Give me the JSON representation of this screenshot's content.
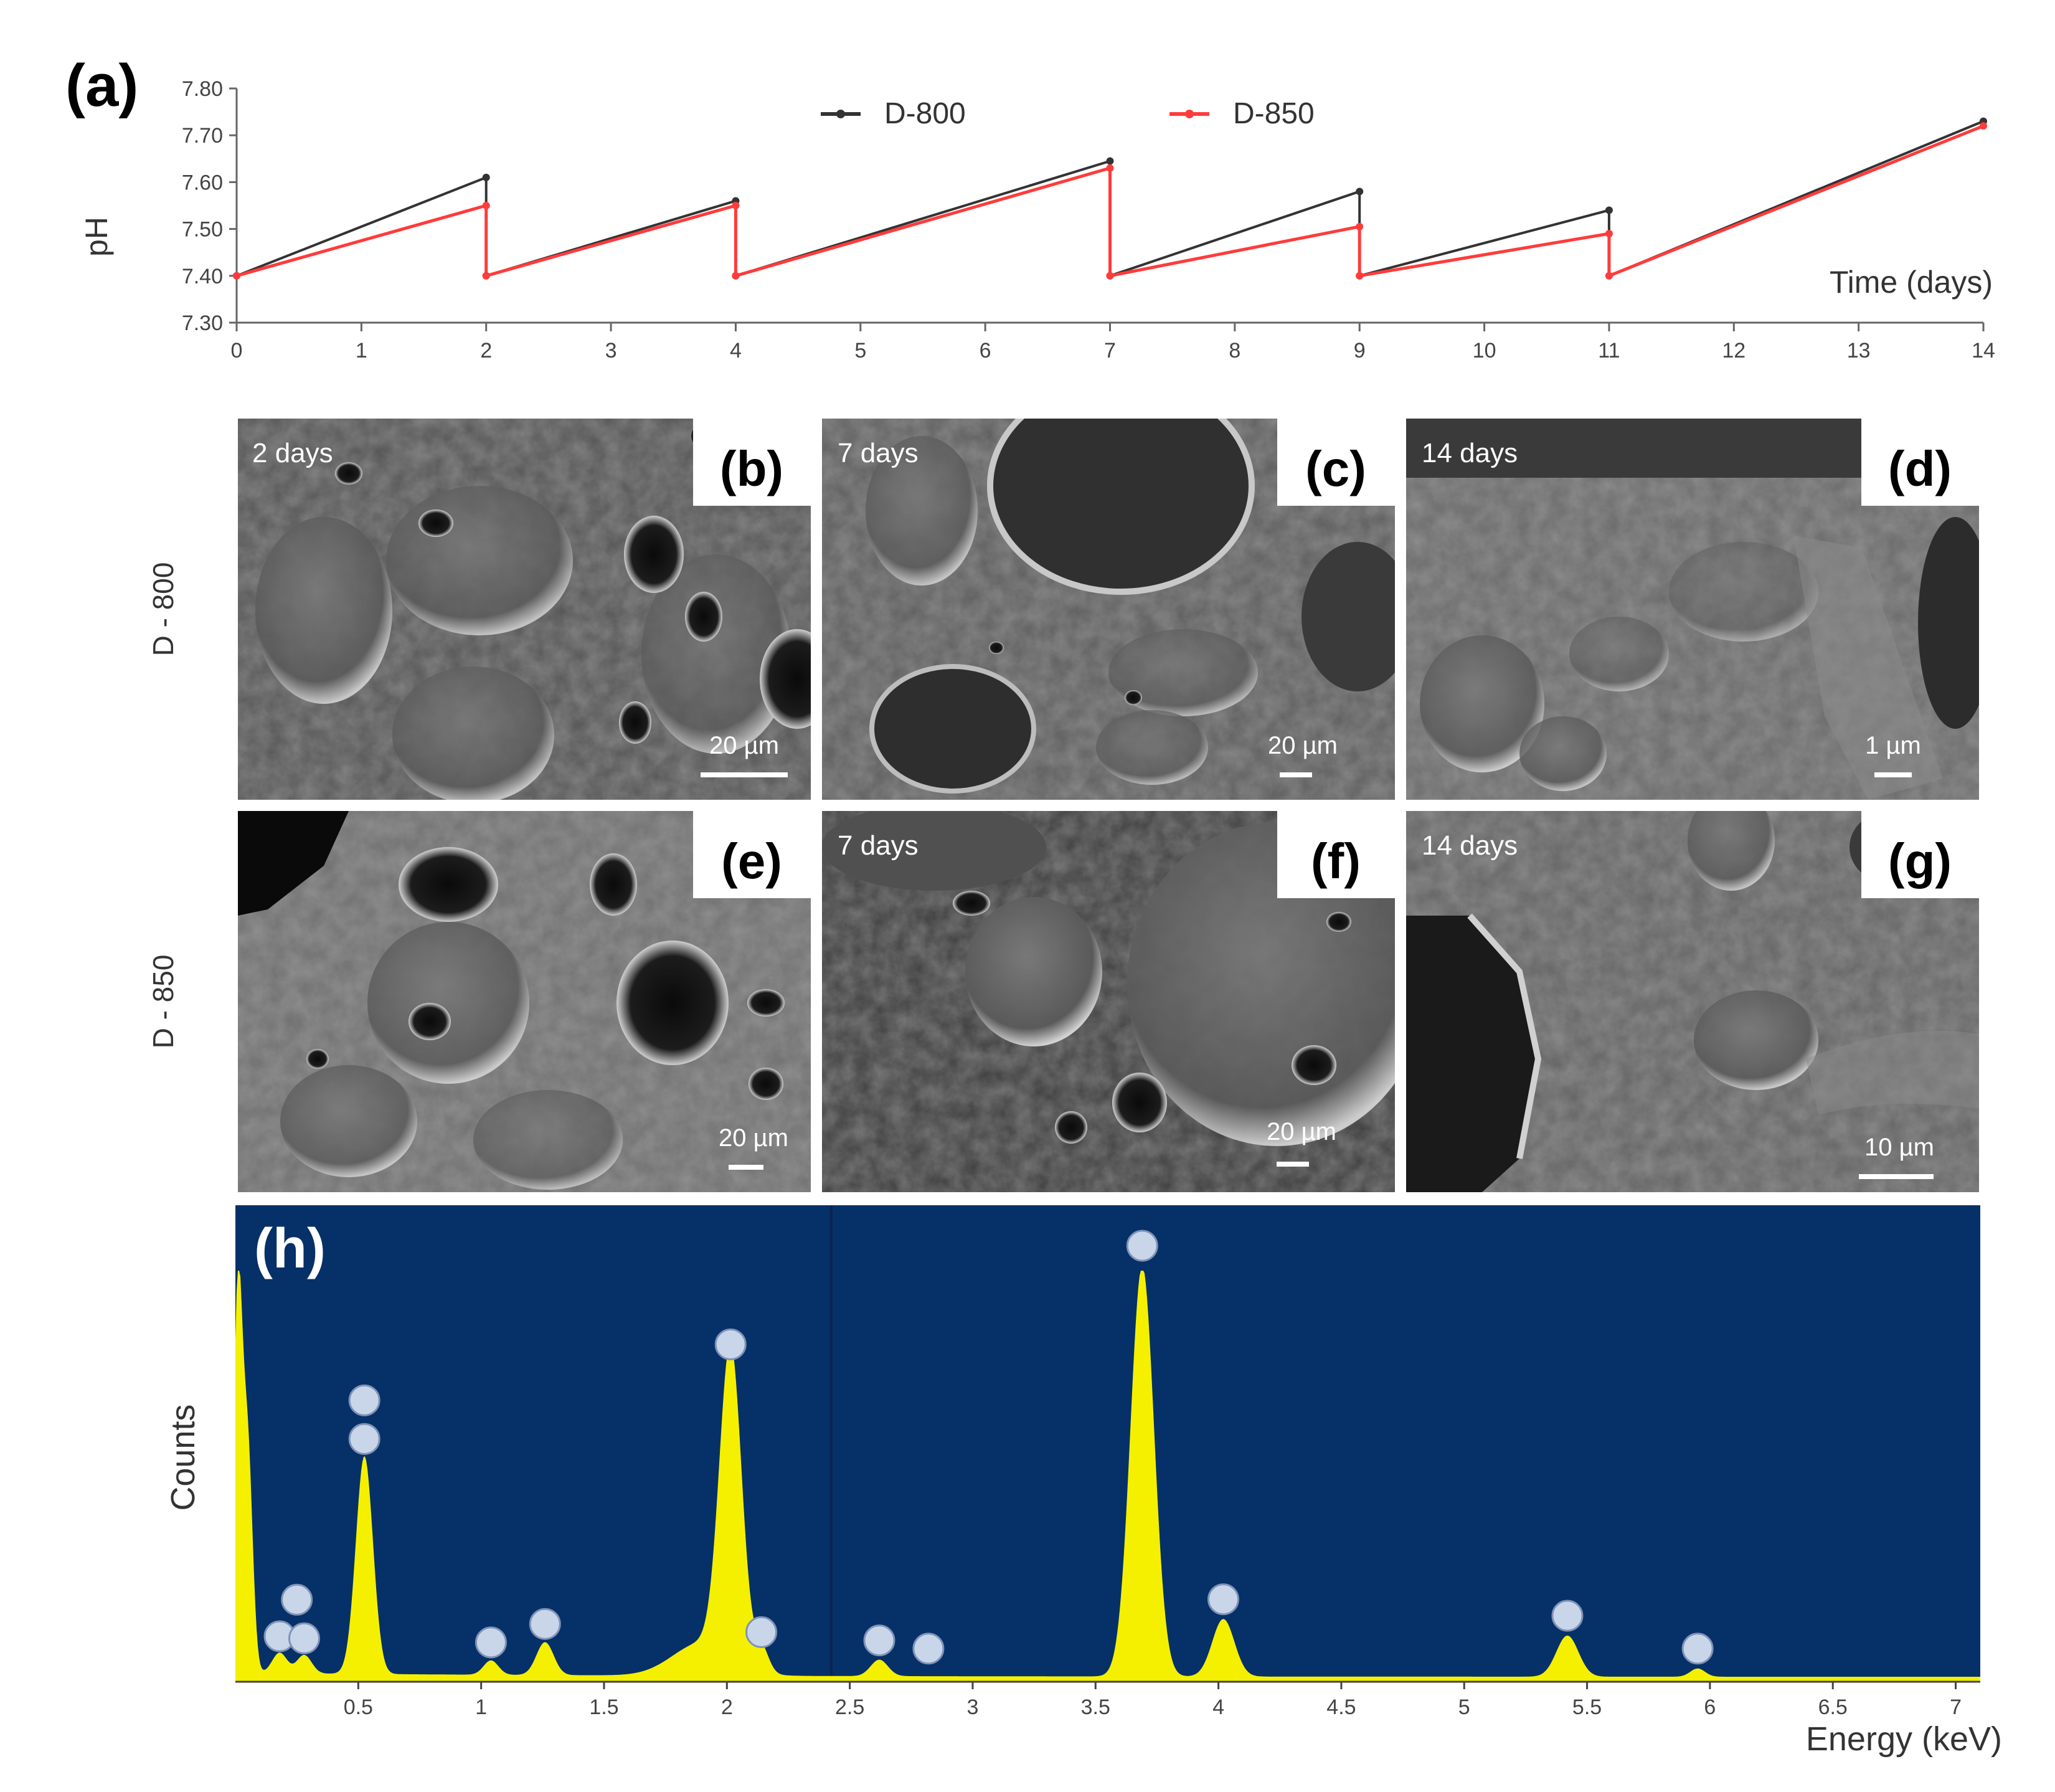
{
  "figure": {
    "panel_a": {
      "label": "(a)",
      "legend": [
        {
          "name": "D-800",
          "color": "#333333"
        },
        {
          "name": "D-850",
          "color": "#ff3b3b"
        }
      ],
      "ylabel": "pH",
      "xlabel": "Time (days)"
    },
    "sem": {
      "row_labels": [
        "D - 800",
        "D - 850"
      ],
      "panels": [
        {
          "label": "(b)",
          "day": "2 days",
          "scale": "20 µm"
        },
        {
          "label": "(c)",
          "day": "7 days",
          "scale": "20 µm"
        },
        {
          "label": "(d)",
          "day": "14 days",
          "scale": "1 µm"
        },
        {
          "label": "(e)",
          "day": "",
          "scale": "20 µm"
        },
        {
          "label": "(f)",
          "day": "7 days",
          "scale": "20 µm"
        },
        {
          "label": "(g)",
          "day": "14 days",
          "scale": "10 µm"
        }
      ]
    },
    "panel_h": {
      "label": "(h)",
      "ylabel": "Counts",
      "xlabel": "Energy (keV)",
      "background": "#063068",
      "spectrum_color": "#f4f000"
    }
  },
  "chart_data": [
    {
      "type": "line",
      "title": "",
      "xlabel": "Time (days)",
      "ylabel": "pH",
      "xlim": [
        0,
        14
      ],
      "ylim": [
        7.3,
        7.8
      ],
      "x_ticks": [
        "0",
        "1",
        "2",
        "3",
        "4",
        "5",
        "6",
        "7",
        "8",
        "9",
        "10",
        "11",
        "12",
        "13",
        "14"
      ],
      "y_ticks": [
        "7.30",
        "7.40",
        "7.50",
        "7.60",
        "7.70",
        "7.80"
      ],
      "legend_position": "top-center",
      "grid": false,
      "series": [
        {
          "name": "D-800",
          "color": "#333333",
          "points": [
            [
              0,
              7.4
            ],
            [
              2,
              7.61
            ],
            [
              2,
              7.4
            ],
            [
              4,
              7.56
            ],
            [
              4,
              7.4
            ],
            [
              7,
              7.645
            ],
            [
              7,
              7.4
            ],
            [
              9,
              7.58
            ],
            [
              9,
              7.4
            ],
            [
              11,
              7.54
            ],
            [
              11,
              7.4
            ],
            [
              14,
              7.73
            ]
          ]
        },
        {
          "name": "D-850",
          "color": "#ff3b3b",
          "points": [
            [
              0,
              7.4
            ],
            [
              2,
              7.55
            ],
            [
              2,
              7.4
            ],
            [
              4,
              7.55
            ],
            [
              4,
              7.4
            ],
            [
              7,
              7.63
            ],
            [
              7,
              7.4
            ],
            [
              9,
              7.505
            ],
            [
              9,
              7.4
            ],
            [
              11,
              7.49
            ],
            [
              11,
              7.4
            ],
            [
              14,
              7.72
            ]
          ]
        }
      ]
    },
    {
      "type": "area",
      "title": "",
      "xlabel": "Energy (keV)",
      "ylabel": "Counts",
      "xlim": [
        0,
        7.1
      ],
      "x_ticks": [
        "0.5",
        "1",
        "1.5",
        "2",
        "2.5",
        "3",
        "3.5",
        "4",
        "4.5",
        "5",
        "5.5",
        "6",
        "6.5",
        "7"
      ],
      "y_ticks": [],
      "grid": false,
      "peaks": [
        {
          "energy": 0.01,
          "height": 0.92,
          "width": 0.018
        },
        {
          "energy": 0.05,
          "height": 0.55,
          "width": 0.02
        },
        {
          "energy": 0.18,
          "height": 0.05,
          "width": 0.03
        },
        {
          "energy": 0.28,
          "height": 0.045,
          "width": 0.03
        },
        {
          "energy": 0.525,
          "height": 0.53,
          "width": 0.035
        },
        {
          "energy": 1.04,
          "height": 0.035,
          "width": 0.03
        },
        {
          "energy": 1.26,
          "height": 0.08,
          "width": 0.035
        },
        {
          "energy": 1.9,
          "height": 0.08,
          "width": 0.12
        },
        {
          "energy": 2.015,
          "height": 0.76,
          "width": 0.045
        },
        {
          "energy": 2.14,
          "height": 0.06,
          "width": 0.03
        },
        {
          "energy": 2.62,
          "height": 0.04,
          "width": 0.035
        },
        {
          "energy": 3.69,
          "height": 1.0,
          "width": 0.048
        },
        {
          "energy": 4.02,
          "height": 0.14,
          "width": 0.045
        },
        {
          "energy": 5.42,
          "height": 0.1,
          "width": 0.045
        },
        {
          "energy": 5.95,
          "height": 0.02,
          "width": 0.03
        }
      ]
    }
  ]
}
